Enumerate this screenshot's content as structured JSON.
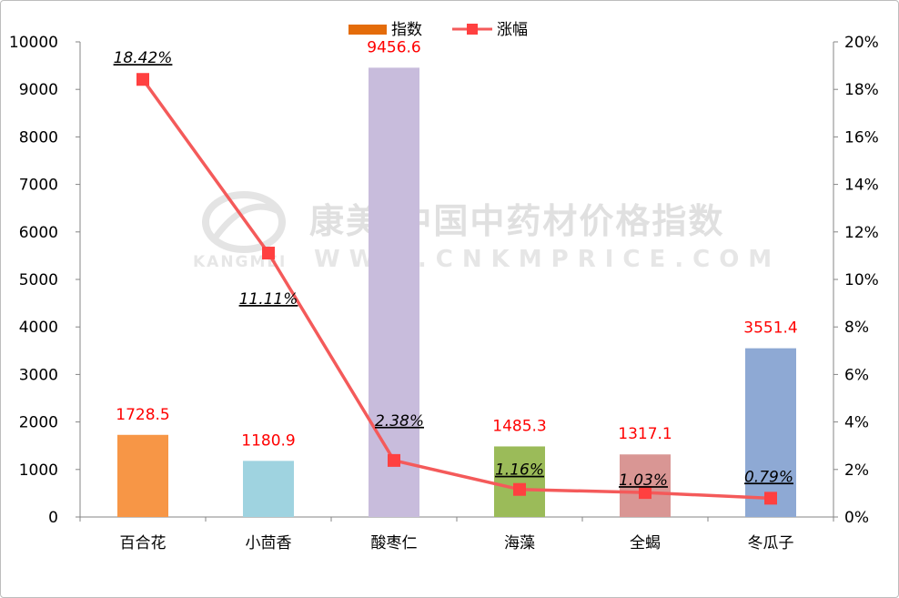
{
  "chart_data": {
    "type": "bar+line",
    "categories": [
      "百合花",
      "小茴香",
      "酸枣仁",
      "海藻",
      "全蝎",
      "冬瓜子"
    ],
    "series": [
      {
        "name": "指数",
        "type": "bar",
        "axis": "left",
        "values": [
          1728.5,
          1180.9,
          9456.6,
          1485.3,
          1317.1,
          3551.4
        ],
        "value_labels": [
          "1728.5",
          "1180.9",
          "9456.6",
          "1485.3",
          "1317.1",
          "3551.4"
        ],
        "colors": [
          "#f79646",
          "#9fd3e0",
          "#c8bcdc",
          "#9bbb59",
          "#d99694",
          "#8ea9d4"
        ],
        "legend_color": "#e46c0a"
      },
      {
        "name": "涨幅",
        "type": "line",
        "axis": "right",
        "values": [
          18.42,
          11.11,
          2.38,
          1.16,
          1.03,
          0.79
        ],
        "value_labels": [
          "18.42%",
          "11.11%",
          "2.38%",
          "1.16%",
          "1.03%",
          "0.79%"
        ],
        "color": "#f45a5a",
        "marker_color": "#ff4040"
      }
    ],
    "y_left": {
      "min": 0,
      "max": 10000,
      "step": 1000,
      "ticks": [
        "0",
        "1000",
        "2000",
        "3000",
        "4000",
        "5000",
        "6000",
        "7000",
        "8000",
        "9000",
        "10000"
      ]
    },
    "y_right": {
      "min": 0,
      "max": 20,
      "step": 2,
      "ticks": [
        "0%",
        "2%",
        "4%",
        "6%",
        "8%",
        "10%",
        "12%",
        "14%",
        "16%",
        "18%",
        "20%"
      ]
    },
    "grid": false,
    "legend": "top-center"
  },
  "watermark": {
    "line1": "康美·中国中药材价格指数",
    "line2": "WWW.CNKMPRICE.COM",
    "brand": "KANGMEI"
  }
}
